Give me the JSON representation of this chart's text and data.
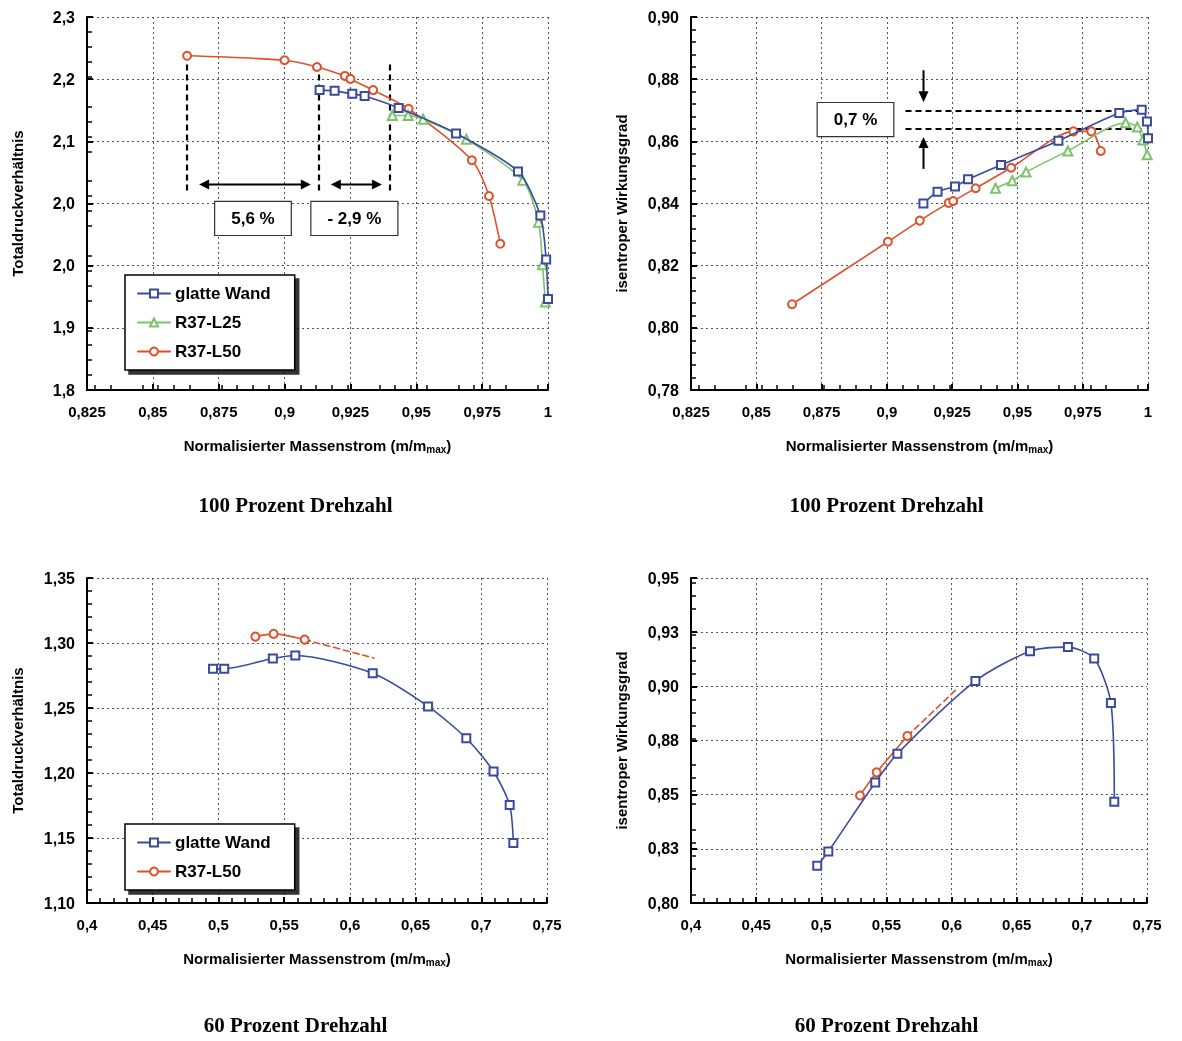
{
  "chart_data": [
    {
      "type": "line",
      "title": "100 Prozent Drehzahl",
      "xlabel": "Normalisierter Massenstrom (m/m$_{max}$)",
      "ylabel": "Totaldruckverhältnis",
      "xlim": [
        0.825,
        1
      ],
      "xticks": [
        {
          "value": 0.825,
          "label": "0,825"
        },
        {
          "value": 0.85,
          "label": "0,85"
        },
        {
          "value": 0.875,
          "label": "0,875"
        },
        {
          "value": 0.9,
          "label": "0,9"
        },
        {
          "value": 0.925,
          "label": "0,925"
        },
        {
          "value": 0.95,
          "label": "0,95"
        },
        {
          "value": 0.975,
          "label": "0,975"
        },
        {
          "value": 1,
          "label": "1"
        }
      ],
      "ylim": [
        1.8,
        2.3
      ],
      "yticks": [
        {
          "value": 1.8,
          "label": "1,8"
        },
        {
          "value": 1.8833,
          "label": "1,9"
        },
        {
          "value": 1.9667,
          "label": "2,0"
        },
        {
          "value": 2.05,
          "label": "2,0"
        },
        {
          "value": 2.1333,
          "label": "2,1"
        },
        {
          "value": 2.2167,
          "label": "2,2"
        },
        {
          "value": 2.3,
          "label": "2,3"
        }
      ],
      "grid": true,
      "legend": "bottom left",
      "series": [
        {
          "name": "glatte Wand",
          "color": "#3a4a9c",
          "marker": "square",
          "x": [
            0.9133,
            0.919,
            0.9257,
            0.9304,
            0.9433,
            0.9651,
            0.9886,
            0.9971,
            0.9993,
            1.0
          ],
          "values": [
            2.202,
            2.201,
            2.197,
            2.194,
            2.178,
            2.144,
            2.093,
            2.034,
            1.975,
            1.922
          ]
        },
        {
          "name": "R37-L25",
          "color": "#7dc36b",
          "marker": "triangle",
          "x": [
            0.9409,
            0.9469,
            0.9526,
            0.969,
            0.9904,
            0.9964,
            0.9979,
            0.999
          ],
          "values": [
            2.168,
            2.168,
            2.163,
            2.136,
            2.081,
            2.025,
            1.968,
            1.918
          ]
        },
        {
          "name": "R37-L50",
          "color": "#e0502a",
          "marker": "circle",
          "x": [
            0.863,
            0.9,
            0.9123,
            0.9229,
            0.925,
            0.9336,
            0.9471,
            0.9711,
            0.9776,
            0.9819
          ],
          "values": [
            2.248,
            2.242,
            2.233,
            2.221,
            2.217,
            2.202,
            2.177,
            2.108,
            2.06,
            1.996
          ]
        }
      ],
      "ref_lines": [
        {
          "axis": "x",
          "value": 0.863,
          "color": "#000000",
          "line_style": "dashed"
        },
        {
          "axis": "x",
          "value": 0.913,
          "color": "#000000",
          "line_style": "dashed"
        },
        {
          "axis": "x",
          "value": 0.94,
          "color": "#000000",
          "line_style": "dashed"
        }
      ],
      "annotations": [
        "5,6 %",
        "- 2,9 %"
      ]
    },
    {
      "type": "line",
      "title": "100 Prozent Drehzahl",
      "xlabel": "Normalisierter Massenstrom (m/m$_{max}$)",
      "ylabel": "isentroper Wirkungsgrad",
      "xlim": [
        0.825,
        1
      ],
      "xticks": [
        {
          "value": 0.825,
          "label": "0,825"
        },
        {
          "value": 0.85,
          "label": "0,85"
        },
        {
          "value": 0.875,
          "label": "0,875"
        },
        {
          "value": 0.9,
          "label": "0,9"
        },
        {
          "value": 0.925,
          "label": "0,925"
        },
        {
          "value": 0.95,
          "label": "0,95"
        },
        {
          "value": 0.975,
          "label": "0,975"
        },
        {
          "value": 1,
          "label": "1"
        }
      ],
      "ylim": [
        0.78,
        0.9
      ],
      "yticks": [
        {
          "value": 0.78,
          "label": "0,78"
        },
        {
          "value": 0.8,
          "label": "0,80"
        },
        {
          "value": 0.82,
          "label": "0,82"
        },
        {
          "value": 0.84,
          "label": "0,84"
        },
        {
          "value": 0.86,
          "label": "0,86"
        },
        {
          "value": 0.88,
          "label": "0,88"
        },
        {
          "value": 0.9,
          "label": "0,90"
        }
      ],
      "grid": true,
      "legend": false,
      "series": [
        {
          "color": "#3a4a9c",
          "marker": "square",
          "x": [
            0.914,
            0.9194,
            0.9261,
            0.9311,
            0.9437,
            0.9657,
            0.989,
            0.9976,
            0.9996,
            1.0
          ],
          "values": [
            0.84,
            0.8438,
            0.8455,
            0.8478,
            0.8524,
            0.8602,
            0.8691,
            0.8702,
            0.8664,
            0.861
          ]
        },
        {
          "color": "#7dc36b",
          "marker": "triangle",
          "x": [
            0.9416,
            0.948,
            0.9533,
            0.9693,
            0.9914,
            0.9959,
            0.998,
            0.9997
          ],
          "values": [
            0.8449,
            0.8473,
            0.8501,
            0.8569,
            0.866,
            0.8646,
            0.8604,
            0.8557
          ]
        },
        {
          "color": "#e0502a",
          "marker": "circle",
          "x": [
            0.8637,
            0.9004,
            0.9126,
            0.9237,
            0.9254,
            0.934,
            0.9476,
            0.9714,
            0.9783,
            0.9819
          ],
          "values": [
            0.8076,
            0.8277,
            0.8345,
            0.8402,
            0.8408,
            0.8449,
            0.8515,
            0.8632,
            0.8632,
            0.8569
          ]
        }
      ],
      "ref_lines": [
        {
          "axis": "y",
          "value": 0.87,
          "color": "#000000",
          "line_style": "dashed"
        },
        {
          "axis": "y",
          "value": 0.864,
          "color": "#000000",
          "line_style": "dashed"
        }
      ],
      "annotations": [
        "0,7 %"
      ]
    },
    {
      "type": "line",
      "title": "60 Prozent Drehzahl",
      "xlabel": "Normalisierter Massenstrom (m/m$_{max}$)",
      "ylabel": "Totaldruckverhältnis",
      "xlim": [
        0.4,
        0.75
      ],
      "xticks": [
        {
          "value": 0.4,
          "label": "0,4"
        },
        {
          "value": 0.45,
          "label": "0,45"
        },
        {
          "value": 0.5,
          "label": "0,5"
        },
        {
          "value": 0.55,
          "label": "0,55"
        },
        {
          "value": 0.6,
          "label": "0,6"
        },
        {
          "value": 0.65,
          "label": "0,65"
        },
        {
          "value": 0.7,
          "label": "0,7"
        },
        {
          "value": 0.75,
          "label": "0,75"
        }
      ],
      "ylim": [
        1.1,
        1.35
      ],
      "yticks": [
        {
          "value": 1.1,
          "label": "1,10"
        },
        {
          "value": 1.15,
          "label": "1,15"
        },
        {
          "value": 1.2,
          "label": "1,20"
        },
        {
          "value": 1.25,
          "label": "1,25"
        },
        {
          "value": 1.3,
          "label": "1,30"
        },
        {
          "value": 1.35,
          "label": "1,35"
        }
      ],
      "grid": true,
      "legend": "bottom left",
      "series": [
        {
          "name": "glatte Wand",
          "color": "#3a4a9c",
          "marker": "square",
          "x": [
            0.4959,
            0.5044,
            0.5414,
            0.5585,
            0.6174,
            0.6595,
            0.6886,
            0.7093,
            0.7216,
            0.7244
          ],
          "values": [
            1.2802,
            1.2802,
            1.2881,
            1.2904,
            1.2767,
            1.2512,
            1.2267,
            1.2012,
            1.1753,
            1.1462
          ]
        },
        {
          "name": "R37-L50",
          "color": "#e0502a",
          "marker": "circle",
          "x": [
            0.5281,
            0.542,
            0.5656
          ],
          "values": [
            1.3049,
            1.307,
            1.3026
          ]
        },
        {
          "color": "#e0502a",
          "marker": "none",
          "line_style": "dashed",
          "x": [
            0.5656,
            0.6183
          ],
          "values": [
            1.3026,
            1.2884
          ]
        }
      ]
    },
    {
      "type": "line",
      "title": "60 Prozent Drehzahl",
      "xlabel": "Normalisierter Massenstrom (m/m$_{max}$)",
      "ylabel": "isentroper Wirkungsgrad",
      "xlim": [
        0.4,
        0.75
      ],
      "xticks": [
        {
          "value": 0.4,
          "label": "0,4"
        },
        {
          "value": 0.45,
          "label": "0,45"
        },
        {
          "value": 0.5,
          "label": "0,5"
        },
        {
          "value": 0.55,
          "label": "0,55"
        },
        {
          "value": 0.6,
          "label": "0,6"
        },
        {
          "value": 0.65,
          "label": "0,65"
        },
        {
          "value": 0.7,
          "label": "0,7"
        },
        {
          "value": 0.75,
          "label": "0,75"
        }
      ],
      "ylim": [
        0.8,
        0.95
      ],
      "yticks": [
        {
          "value": 0.8,
          "label": "0,80"
        },
        {
          "value": 0.825,
          "label": "0,83"
        },
        {
          "value": 0.85,
          "label": "0,85"
        },
        {
          "value": 0.875,
          "label": "0,88"
        },
        {
          "value": 0.9,
          "label": "0,90"
        },
        {
          "value": 0.925,
          "label": "0,93"
        },
        {
          "value": 0.95,
          "label": "0,95"
        }
      ],
      "grid": true,
      "legend": false,
      "series": [
        {
          "color": "#3a4a9c",
          "marker": "square",
          "x": [
            0.4969,
            0.5054,
            0.5414,
            0.5584,
            0.6183,
            0.6602,
            0.6893,
            0.7095,
            0.7223,
            0.7249
          ],
          "values": [
            0.8172,
            0.8238,
            0.8556,
            0.8689,
            0.9025,
            0.9162,
            0.9181,
            0.9128,
            0.8923,
            0.8467
          ]
        },
        {
          "color": "#e0502a",
          "marker": "circle",
          "x": [
            0.5297,
            0.5425,
            0.5661
          ],
          "values": [
            0.8496,
            0.8603,
            0.8771
          ]
        },
        {
          "color": "#e0502a",
          "marker": "none",
          "line_style": "dashed",
          "x": [
            0.5661,
            0.6032
          ],
          "values": [
            0.8771,
            0.8983
          ]
        }
      ]
    }
  ]
}
